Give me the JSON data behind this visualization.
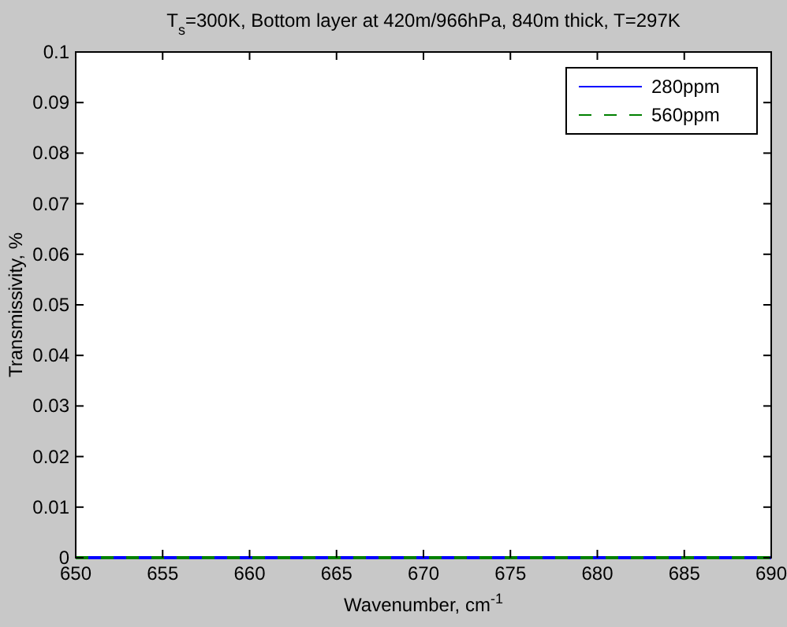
{
  "chart_data": {
    "type": "line",
    "title": "T$_{s}$=300K, Bottom layer at 420m/966hPa, 840m thick, T=297K",
    "xlabel": "Wavenumber, cm$^{-1}$",
    "ylabel": "Transmissivity, %",
    "x": [
      650,
      690
    ],
    "series": [
      {
        "name": "280ppm",
        "color": "#0000ff",
        "values": [
          0,
          0
        ]
      },
      {
        "name": "560ppm",
        "color": "#008000",
        "values": [
          0,
          0
        ],
        "line_style": "dashed"
      }
    ],
    "xlim": [
      650,
      690
    ],
    "xticks": [
      650,
      655,
      660,
      665,
      670,
      675,
      680,
      685,
      690
    ],
    "ylim": [
      0,
      0.1
    ],
    "yticks": [
      0,
      0.01,
      0.02,
      0.03,
      0.04,
      0.05,
      0.06,
      0.07,
      0.08,
      0.09,
      0.1
    ],
    "legend": "top right",
    "grid": false,
    "marker": "none",
    "line_style": "solid"
  }
}
